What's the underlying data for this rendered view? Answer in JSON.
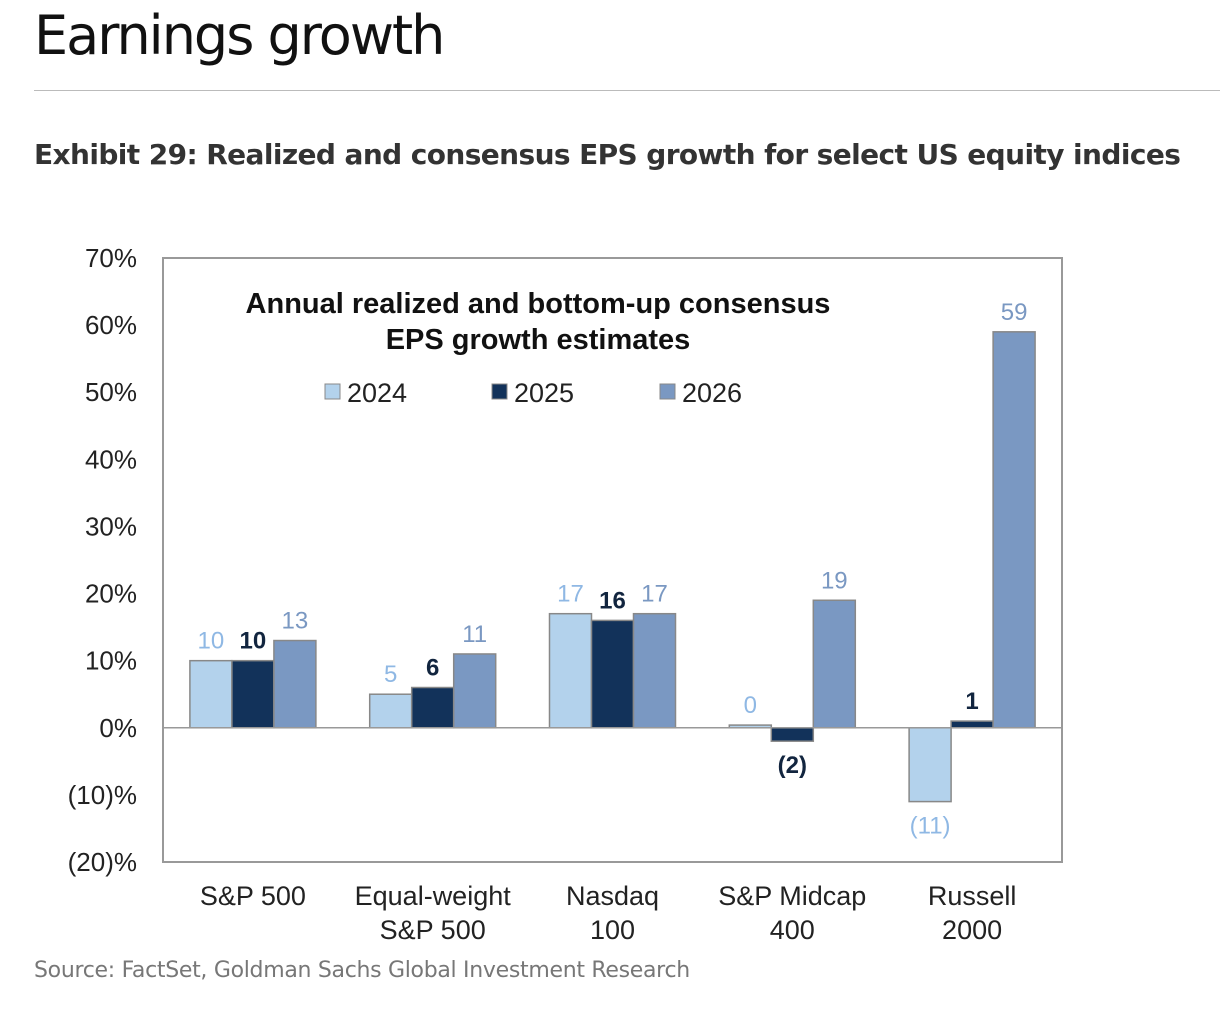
{
  "header": {
    "title": "Earnings growth",
    "exhibit": "Exhibit 29: Realized and consensus EPS growth for select US equity indices",
    "source": "Source: FactSet, Goldman Sachs Global Investment Research"
  },
  "chart_data": {
    "type": "bar",
    "title": "Annual realized and bottom-up consensus",
    "title_line2": "EPS growth estimates",
    "categories": [
      [
        "S&P 500"
      ],
      [
        "Equal-weight",
        "S&P 500"
      ],
      [
        "Nasdaq",
        "100"
      ],
      [
        "S&P Midcap",
        "400"
      ],
      [
        "Russell",
        "2000"
      ]
    ],
    "series": [
      {
        "name": "2024",
        "color": "#b3d2ec",
        "label_color": "#8fb8e4",
        "values": [
          10,
          5,
          17,
          0.4,
          -11
        ],
        "labels": [
          "10",
          "5",
          "17",
          "0",
          "(11)"
        ]
      },
      {
        "name": "2025",
        "color": "#12325a",
        "label_color": "#12253f",
        "values": [
          10,
          6,
          16,
          -2,
          1
        ],
        "labels": [
          "10",
          "6",
          "16",
          "(2)",
          "1"
        ]
      },
      {
        "name": "2026",
        "color": "#7a98c2",
        "label_color": "#7a98c2",
        "values": [
          13,
          11,
          17,
          19,
          59
        ],
        "labels": [
          "13",
          "11",
          "17",
          "19",
          "59"
        ]
      }
    ],
    "ylim": [
      -20,
      70
    ],
    "yticks": [
      70,
      60,
      50,
      40,
      30,
      20,
      10,
      0,
      -10,
      -20
    ],
    "ytick_labels": [
      "70%",
      "60%",
      "50%",
      "40%",
      "30%",
      "20%",
      "10%",
      "0%",
      "(10)%",
      "(20)%"
    ],
    "grid": false,
    "legend": "top-center"
  }
}
